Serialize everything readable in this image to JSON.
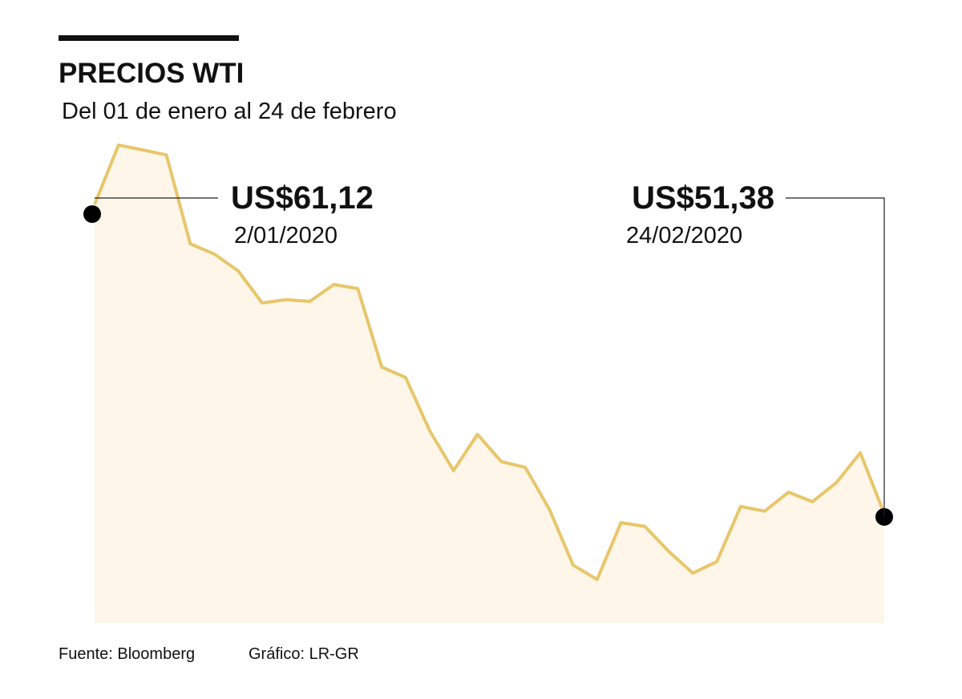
{
  "chart_data": {
    "type": "area",
    "title": "PRECIOS WTI",
    "subtitle": "Del 01 de enero al 24 de febrero",
    "categories": [
      "2/01/2020",
      null,
      null,
      null,
      null,
      null,
      null,
      null,
      null,
      null,
      null,
      null,
      null,
      null,
      null,
      null,
      null,
      null,
      null,
      null,
      null,
      null,
      null,
      null,
      null,
      null,
      null,
      null,
      null,
      null,
      null,
      null,
      null,
      "24/02/2020"
    ],
    "values": [
      61.12,
      62.99,
      62.84,
      62.68,
      59.88,
      59.56,
      59.03,
      58.02,
      58.12,
      58.07,
      58.6,
      58.47,
      56.0,
      55.67,
      54.0,
      52.74,
      53.88,
      53.02,
      52.84,
      51.53,
      49.76,
      49.31,
      51.1,
      50.98,
      50.19,
      49.51,
      49.87,
      51.61,
      51.46,
      52.06,
      51.76,
      52.36,
      53.3,
      51.38
    ],
    "value_labels": [
      "US$61,12",
      null,
      null,
      null,
      null,
      null,
      null,
      null,
      null,
      null,
      null,
      null,
      null,
      null,
      null,
      null,
      null,
      null,
      null,
      null,
      null,
      null,
      null,
      null,
      null,
      null,
      null,
      null,
      null,
      null,
      null,
      null,
      null,
      "US$51,38"
    ],
    "color": "#e8c66a",
    "fill": "#fdf6e9",
    "ylim": [
      46,
      64
    ],
    "source": "Fuente: Bloomberg",
    "credit": "Gráfico: LR-GR"
  }
}
